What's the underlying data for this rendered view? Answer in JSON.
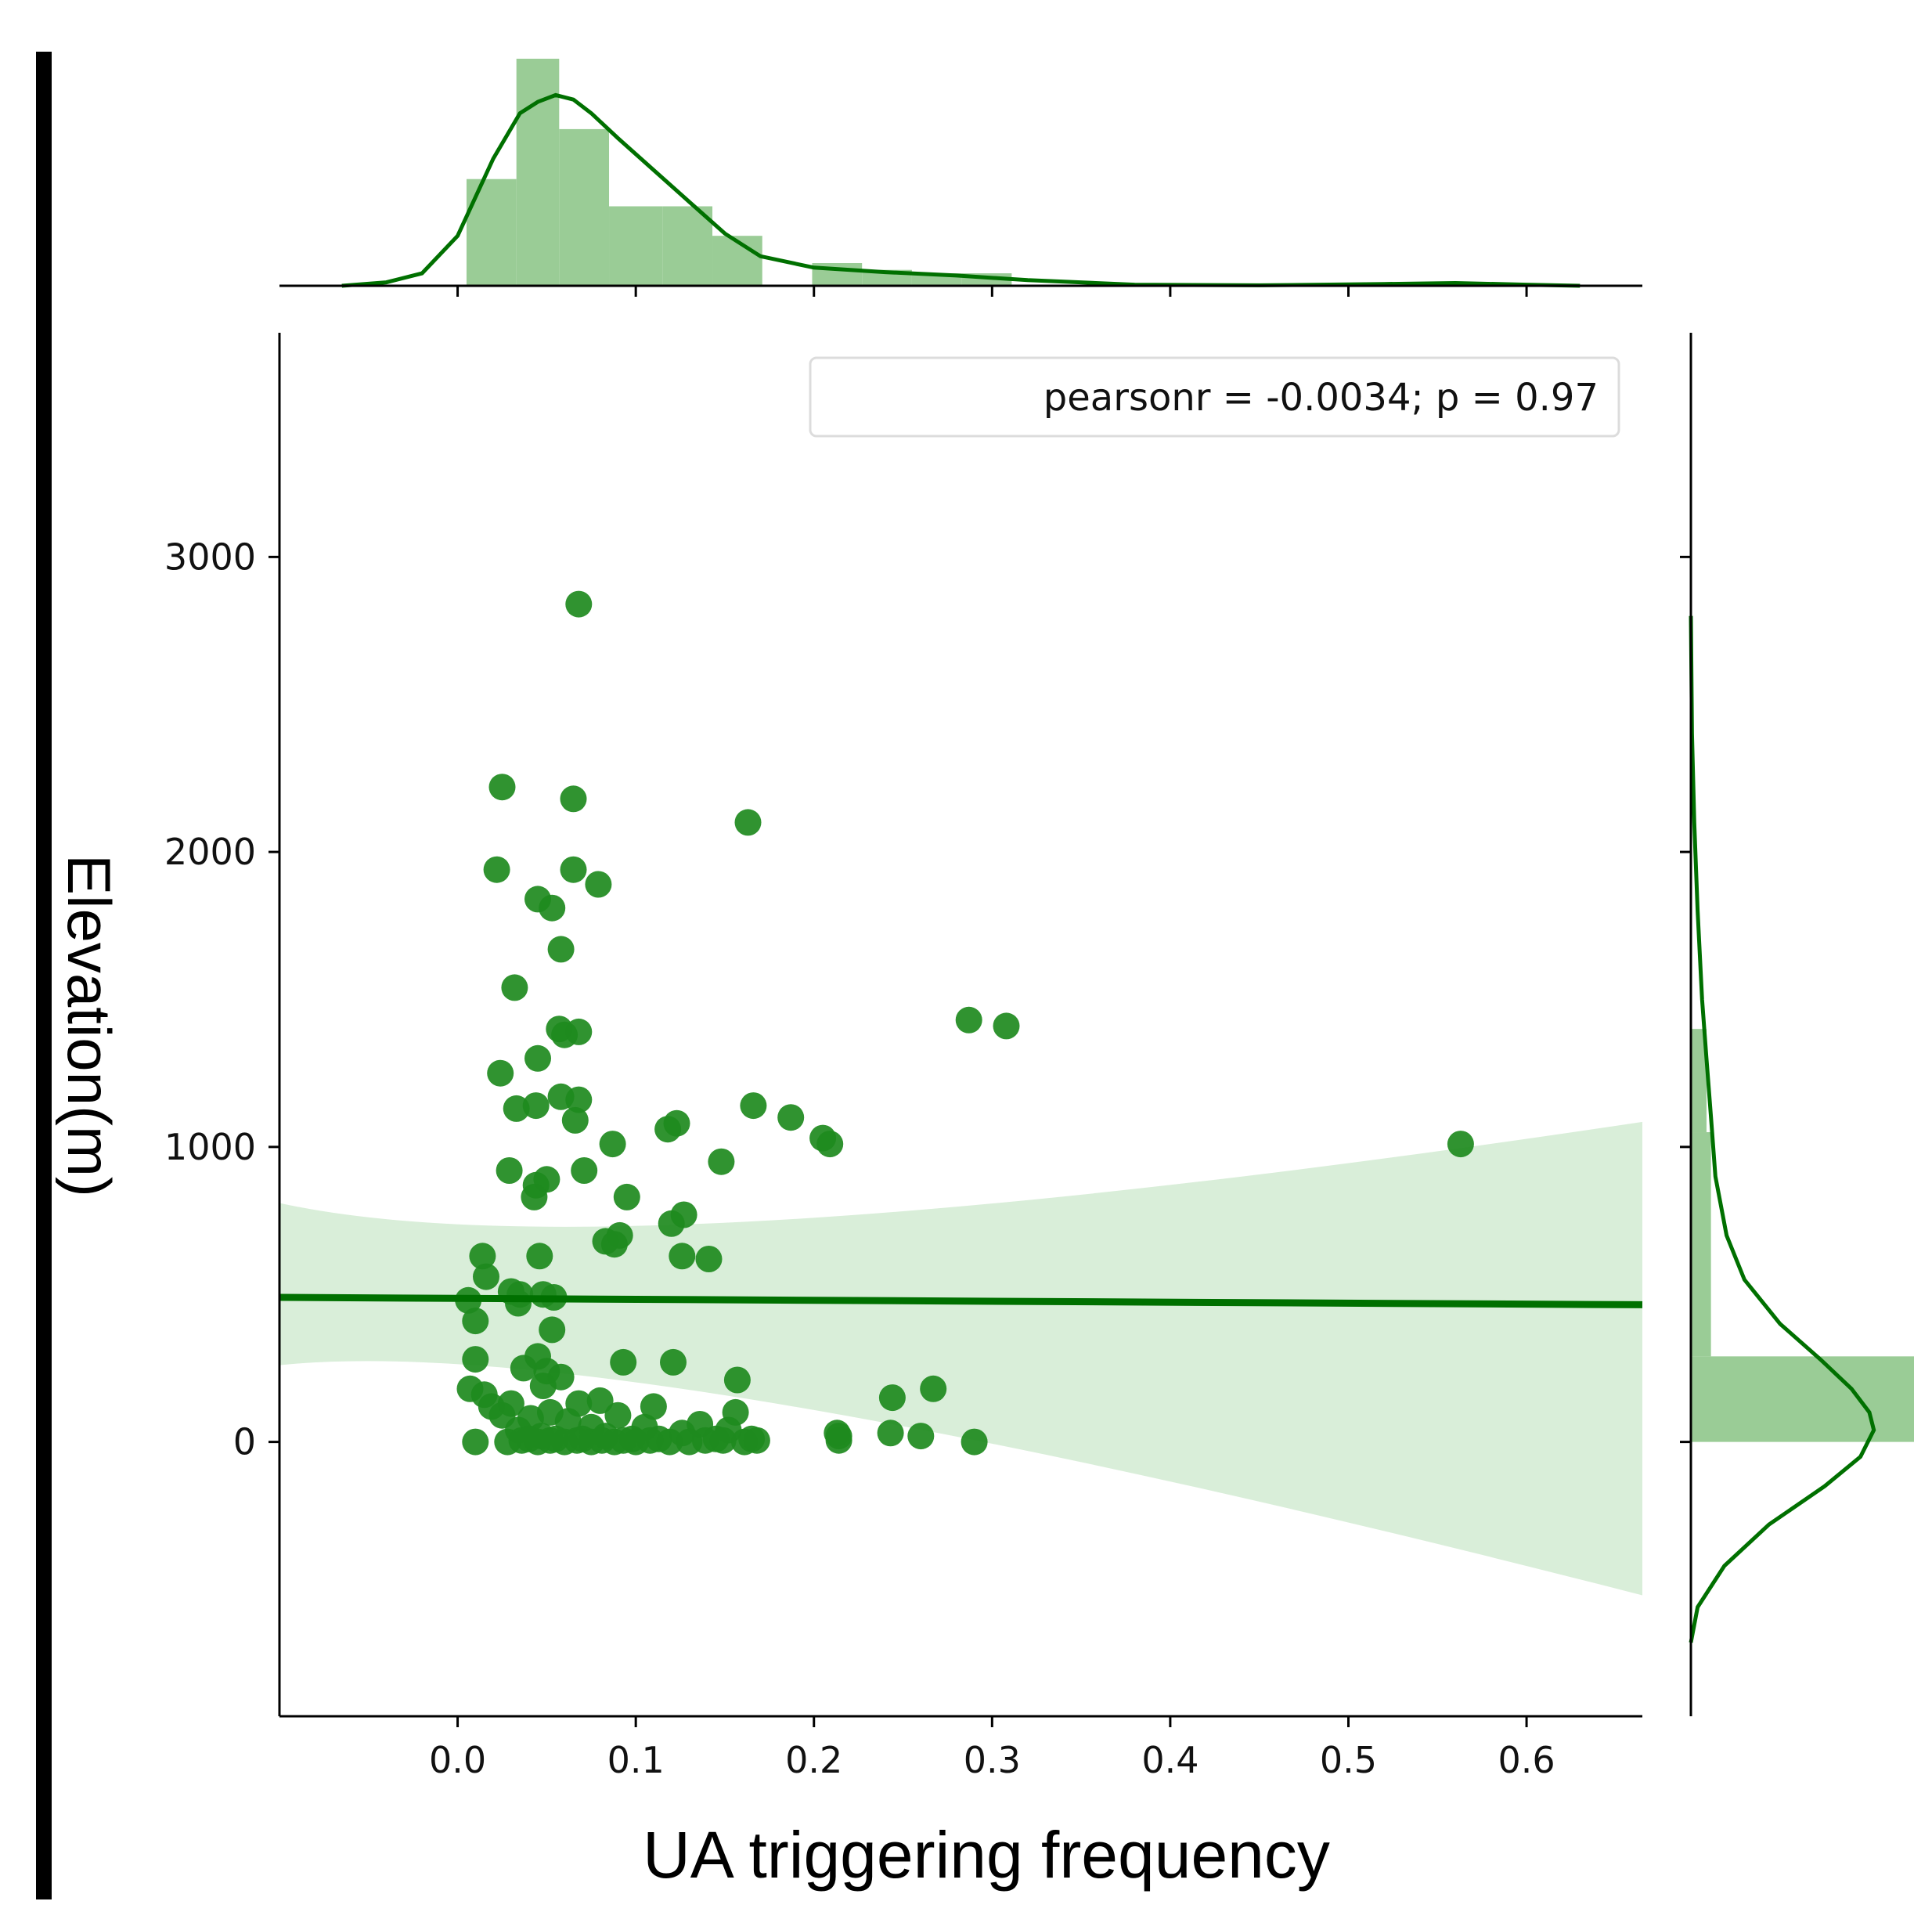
{
  "chart_data": {
    "type": "scatter",
    "title": "",
    "xlabel": "UA triggering frequency",
    "ylabel": "Elevation(m)",
    "xlim": [
      -0.1,
      0.665
    ],
    "ylim": [
      -930,
      3760
    ],
    "x_ticks": [
      0.0,
      0.1,
      0.2,
      0.3,
      0.4,
      0.5,
      0.6
    ],
    "x_tick_labels": [
      "0.0",
      "0.1",
      "0.2",
      "0.3",
      "0.4",
      "0.5",
      "0.6"
    ],
    "y_ticks": [
      0,
      1000,
      2000,
      3000
    ],
    "y_tick_labels": [
      "0",
      "1000",
      "2000",
      "3000"
    ],
    "legend_text": "pearsonr = -0.0034; p = 0.97",
    "legend_placement": "top-right",
    "colors": {
      "point": "#1e8a1e",
      "line": "#007000",
      "band": "#d9eed9",
      "hist": "#9acc96",
      "kde": "#007000",
      "frame": "#000000"
    },
    "points": [
      [
        0.068,
        2840
      ],
      [
        0.025,
        2220
      ],
      [
        0.065,
        2180
      ],
      [
        0.163,
        2100
      ],
      [
        0.022,
        1940
      ],
      [
        0.065,
        1940
      ],
      [
        0.079,
        1890
      ],
      [
        0.045,
        1840
      ],
      [
        0.053,
        1810
      ],
      [
        0.058,
        1670
      ],
      [
        0.032,
        1540
      ],
      [
        0.287,
        1430
      ],
      [
        0.308,
        1410
      ],
      [
        0.057,
        1400
      ],
      [
        0.06,
        1380
      ],
      [
        0.068,
        1390
      ],
      [
        0.045,
        1300
      ],
      [
        0.024,
        1250
      ],
      [
        0.058,
        1170
      ],
      [
        0.068,
        1160
      ],
      [
        0.166,
        1140
      ],
      [
        0.033,
        1130
      ],
      [
        0.044,
        1140
      ],
      [
        0.187,
        1100
      ],
      [
        0.066,
        1090
      ],
      [
        0.123,
        1080
      ],
      [
        0.118,
        1060
      ],
      [
        0.205,
        1030
      ],
      [
        0.209,
        1010
      ],
      [
        0.087,
        1010
      ],
      [
        0.563,
        1010
      ],
      [
        0.148,
        950
      ],
      [
        0.029,
        920
      ],
      [
        0.071,
        920
      ],
      [
        0.05,
        890
      ],
      [
        0.044,
        870
      ],
      [
        0.043,
        830
      ],
      [
        0.095,
        830
      ],
      [
        0.127,
        770
      ],
      [
        0.12,
        740
      ],
      [
        0.091,
        700
      ],
      [
        0.083,
        680
      ],
      [
        0.088,
        670
      ],
      [
        0.014,
        630
      ],
      [
        0.046,
        630
      ],
      [
        0.126,
        630
      ],
      [
        0.141,
        620
      ],
      [
        0.016,
        560
      ],
      [
        0.03,
        510
      ],
      [
        0.035,
        500
      ],
      [
        0.048,
        500
      ],
      [
        0.054,
        490
      ],
      [
        0.006,
        480
      ],
      [
        0.034,
        470
      ],
      [
        0.01,
        410
      ],
      [
        0.053,
        380
      ],
      [
        0.045,
        290
      ],
      [
        0.01,
        280
      ],
      [
        0.093,
        270
      ],
      [
        0.121,
        270
      ],
      [
        0.037,
        250
      ],
      [
        0.05,
        240
      ],
      [
        0.058,
        220
      ],
      [
        0.157,
        210
      ],
      [
        0.048,
        190
      ],
      [
        0.007,
        180
      ],
      [
        0.267,
        180
      ],
      [
        0.015,
        160
      ],
      [
        0.244,
        150
      ],
      [
        0.08,
        140
      ],
      [
        0.068,
        130
      ],
      [
        0.03,
        130
      ],
      [
        0.11,
        120
      ],
      [
        0.019,
        120
      ],
      [
        0.156,
        100
      ],
      [
        0.052,
        100
      ],
      [
        0.09,
        90
      ],
      [
        0.025,
        90
      ],
      [
        0.041,
        80
      ],
      [
        0.062,
        70
      ],
      [
        0.136,
        60
      ],
      [
        0.105,
        50
      ],
      [
        0.075,
        50
      ],
      [
        0.152,
        40
      ],
      [
        0.034,
        40
      ],
      [
        0.243,
        30
      ],
      [
        0.213,
        30
      ],
      [
        0.214,
        20
      ],
      [
        0.126,
        30
      ],
      [
        0.26,
        20
      ],
      [
        0.047,
        20
      ],
      [
        0.083,
        20
      ],
      [
        0.055,
        10
      ],
      [
        0.165,
        10
      ],
      [
        0.145,
        10
      ],
      [
        0.098,
        10
      ],
      [
        0.07,
        10
      ],
      [
        0.113,
        10
      ],
      [
        0.04,
        10
      ],
      [
        0.01,
        0
      ],
      [
        0.028,
        0
      ],
      [
        0.045,
        0
      ],
      [
        0.06,
        0
      ],
      [
        0.075,
        0
      ],
      [
        0.088,
        0
      ],
      [
        0.1,
        0
      ],
      [
        0.119,
        0
      ],
      [
        0.13,
        0
      ],
      [
        0.161,
        0
      ],
      [
        0.29,
        0
      ],
      [
        0.214,
        5
      ],
      [
        0.036,
        5
      ],
      [
        0.052,
        5
      ],
      [
        0.067,
        5
      ],
      [
        0.081,
        5
      ],
      [
        0.093,
        5
      ],
      [
        0.108,
        5
      ],
      [
        0.139,
        5
      ],
      [
        0.149,
        5
      ],
      [
        0.168,
        5
      ]
    ],
    "regression": {
      "x": [
        -0.1,
        0.665
      ],
      "y": [
        490,
        465
      ],
      "ci_lower": [
        260,
        -520
      ],
      "ci_upper": [
        810,
        1085
      ]
    },
    "x_marginal": {
      "bin_edges": [
        0.005,
        0.033,
        0.057,
        0.085,
        0.115,
        0.143,
        0.171,
        0.199,
        0.227,
        0.255,
        0.283,
        0.311
      ],
      "densities": [
        4.7,
        10.0,
        6.9,
        3.5,
        3.5,
        2.2,
        0.0,
        1.0,
        0.7,
        0.55,
        0.55
      ],
      "kde_x": [
        -0.065,
        -0.04,
        -0.02,
        0.0,
        0.02,
        0.035,
        0.045,
        0.055,
        0.065,
        0.075,
        0.09,
        0.11,
        0.13,
        0.15,
        0.17,
        0.2,
        0.24,
        0.28,
        0.32,
        0.38,
        0.45,
        0.52,
        0.56,
        0.6,
        0.63
      ],
      "kde_y": [
        0.0,
        0.15,
        0.55,
        2.2,
        5.6,
        7.6,
        8.1,
        8.4,
        8.2,
        7.6,
        6.5,
        5.1,
        3.7,
        2.3,
        1.3,
        0.8,
        0.6,
        0.45,
        0.25,
        0.05,
        0.02,
        0.08,
        0.12,
        0.05,
        0.0
      ]
    },
    "y_marginal": {
      "bin_edges": [
        0,
        290,
        1050,
        1400
      ],
      "densities": [
        10.0,
        0.9,
        0.7
      ],
      "kde_y": [
        -680,
        -560,
        -420,
        -280,
        -150,
        -50,
        40,
        100,
        180,
        280,
        400,
        550,
        700,
        900,
        1100,
        1300,
        1500,
        1800,
        2100,
        2400,
        2800
      ],
      "kde_x": [
        0.0,
        0.3,
        1.5,
        3.5,
        6.0,
        7.6,
        8.2,
        8.0,
        7.2,
        5.8,
        4.0,
        2.4,
        1.6,
        1.1,
        0.9,
        0.7,
        0.5,
        0.3,
        0.15,
        0.05,
        0.0
      ]
    }
  }
}
